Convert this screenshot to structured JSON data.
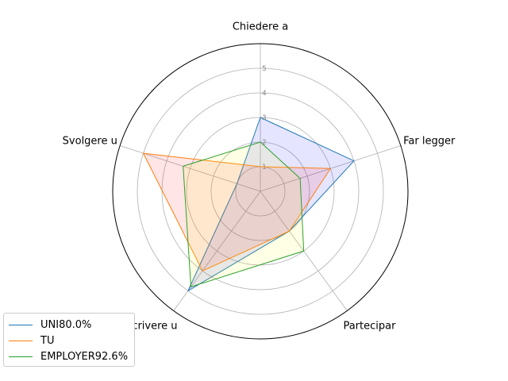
{
  "chart_data": {
    "type": "radar",
    "axes": [
      "Chiedere a",
      "Far legger",
      "Partecipar",
      "Scrivere u",
      "Svolgere u"
    ],
    "ticks": [
      "1",
      "2",
      "3",
      "4",
      "5"
    ],
    "rmax": 6,
    "grid": true,
    "legend_position": "bottom-left",
    "series": [
      {
        "name": "UNI80.0%",
        "values": [
          3.0,
          4.0,
          2.0,
          5.0,
          1.0
        ],
        "color": "#1f77b4",
        "fill": "#0000ff"
      },
      {
        "name": "TU",
        "values": [
          1.0,
          3.0,
          2.0,
          4.0,
          5.0
        ],
        "color": "#ff7f0e",
        "fill": "#ff0000"
      },
      {
        "name": "EMPLOYER92.6%",
        "values": [
          2.0,
          1.7,
          3.0,
          4.8,
          3.3
        ],
        "color": "#2ca02c",
        "fill": "#ffff00"
      }
    ]
  }
}
